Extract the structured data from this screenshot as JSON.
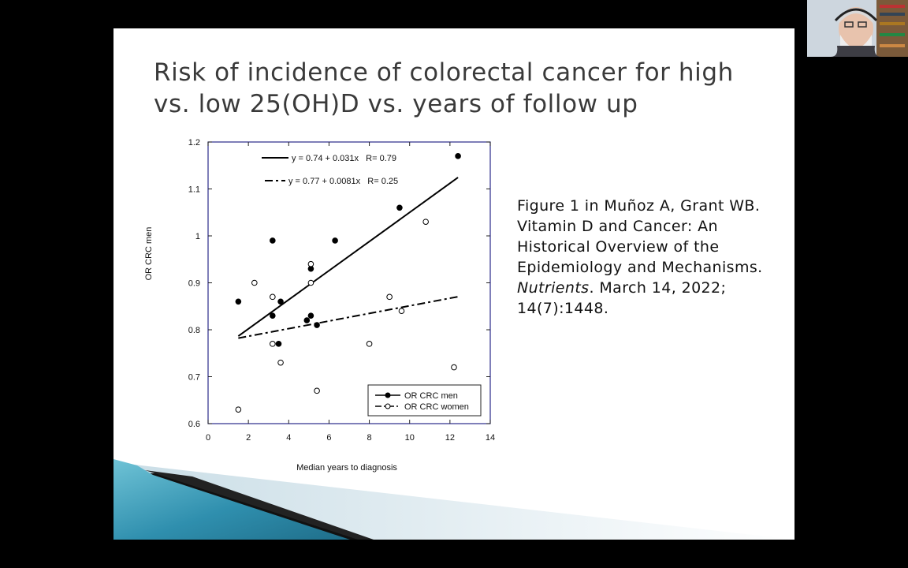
{
  "slide": {
    "title_lines": [
      "Risk of incidence of colorectal cancer for high",
      "vs. low 25(OH)D vs. years of follow up"
    ],
    "citation": {
      "line1": "Figure 1 in Muñoz A, Grant WB.",
      "line2": "Vitamin D and Cancer: An",
      "line3": "Historical Overview of the",
      "line4": "Epidemiology and Mechanisms.",
      "journal": "Nutrients",
      "line5_rest": ". March 14, 2022;",
      "line6": "14(7):1448."
    }
  },
  "chart_data": {
    "type": "scatter",
    "xlabel": "Median years to diagnosis",
    "ylabel": "OR CRC men",
    "xlim": [
      0,
      14
    ],
    "ylim": [
      0.6,
      1.2
    ],
    "x_ticks": [
      "0",
      "2",
      "4",
      "6",
      "8",
      "10",
      "12",
      "14"
    ],
    "y_ticks": [
      "0.6",
      "0.7",
      "0.8",
      "0.9",
      "1",
      "1.1",
      "1.2"
    ],
    "grid": false,
    "legend_position": "bottom-right",
    "series": [
      {
        "name": "OR CRC men",
        "marker": "filled-circle",
        "color": "#000000",
        "points": [
          [
            1.5,
            0.86
          ],
          [
            3.2,
            0.99
          ],
          [
            3.2,
            0.83
          ],
          [
            3.5,
            0.77
          ],
          [
            3.6,
            0.86
          ],
          [
            4.9,
            0.82
          ],
          [
            5.1,
            0.93
          ],
          [
            5.1,
            0.83
          ],
          [
            5.4,
            0.81
          ],
          [
            6.3,
            0.99
          ],
          [
            9.5,
            1.06
          ],
          [
            12.4,
            1.17
          ]
        ],
        "fit_label": "y = 0.74 + 0.031x   R= 0.79",
        "fit": {
          "intercept": 0.74,
          "slope": 0.031,
          "x_range": [
            1.5,
            12.4
          ],
          "style": "solid"
        }
      },
      {
        "name": "OR CRC women",
        "marker": "open-circle",
        "color": "#000000",
        "points": [
          [
            1.5,
            0.63
          ],
          [
            2.3,
            0.9
          ],
          [
            3.2,
            0.87
          ],
          [
            3.2,
            0.77
          ],
          [
            3.6,
            0.73
          ],
          [
            5.1,
            0.94
          ],
          [
            5.1,
            0.9
          ],
          [
            5.4,
            0.67
          ],
          [
            8.0,
            0.77
          ],
          [
            9.0,
            0.87
          ],
          [
            9.6,
            0.84
          ],
          [
            10.8,
            1.03
          ],
          [
            12.2,
            0.72
          ]
        ],
        "fit_label": "y = 0.77 + 0.0081x   R= 0.25",
        "fit": {
          "intercept": 0.77,
          "slope": 0.0081,
          "x_range": [
            1.5,
            12.4
          ],
          "style": "dash-dot"
        }
      }
    ]
  }
}
